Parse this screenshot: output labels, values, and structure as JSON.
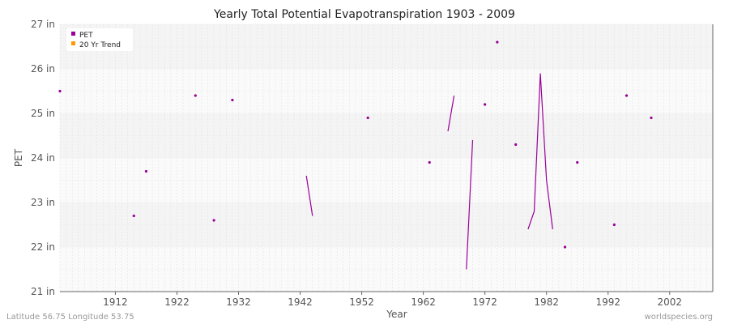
{
  "chart_data": {
    "type": "line",
    "title": "Yearly Total Potential Evapotranspiration 1903 - 2009",
    "xlabel": "Year",
    "ylabel": "PET",
    "xlim": [
      1903,
      2009
    ],
    "ylim": [
      21,
      27
    ],
    "x_ticks": [
      {
        "value": 1912,
        "label": "1912"
      },
      {
        "value": 1922,
        "label": "1922"
      },
      {
        "value": 1932,
        "label": "1932"
      },
      {
        "value": 1942,
        "label": "1942"
      },
      {
        "value": 1952,
        "label": "1952"
      },
      {
        "value": 1962,
        "label": "1962"
      },
      {
        "value": 1972,
        "label": "1972"
      },
      {
        "value": 1982,
        "label": "1982"
      },
      {
        "value": 1992,
        "label": "1992"
      },
      {
        "value": 2002,
        "label": "2002"
      }
    ],
    "y_ticks": [
      {
        "value": 21,
        "label": "21 in"
      },
      {
        "value": 22,
        "label": "22 in"
      },
      {
        "value": 23,
        "label": "23 in"
      },
      {
        "value": 24,
        "label": "24 in"
      },
      {
        "value": 25,
        "label": "25 in"
      },
      {
        "value": 26,
        "label": "26 in"
      },
      {
        "value": 27,
        "label": "27 in"
      }
    ],
    "grid": true,
    "legend_position": "top-left",
    "series": [
      {
        "name": "PET",
        "color": "#990099",
        "segments": [
          [
            [
              1903,
              25.5
            ]
          ],
          [
            [
              1915,
              22.7
            ]
          ],
          [
            [
              1917,
              23.7
            ]
          ],
          [
            [
              1925,
              25.4
            ]
          ],
          [
            [
              1928,
              22.6
            ]
          ],
          [
            [
              1931,
              25.3
            ]
          ],
          [
            [
              1943,
              23.6
            ],
            [
              1944,
              22.7
            ]
          ],
          [
            [
              1953,
              24.9
            ]
          ],
          [
            [
              1963,
              23.9
            ]
          ],
          [
            [
              1966,
              24.6
            ],
            [
              1967,
              25.4
            ]
          ],
          [
            [
              1969,
              21.5
            ],
            [
              1970,
              24.4
            ]
          ],
          [
            [
              1972,
              25.2
            ]
          ],
          [
            [
              1974,
              26.6
            ]
          ],
          [
            [
              1977,
              24.3
            ]
          ],
          [
            [
              1979,
              22.4
            ],
            [
              1980,
              22.8
            ],
            [
              1981,
              25.9
            ],
            [
              1982,
              23.5
            ],
            [
              1983,
              22.4
            ]
          ],
          [
            [
              1985,
              22.0
            ]
          ],
          [
            [
              1987,
              23.9
            ]
          ],
          [
            [
              1993,
              22.5
            ]
          ],
          [
            [
              1995,
              25.4
            ]
          ],
          [
            [
              1999,
              24.9
            ]
          ]
        ]
      },
      {
        "name": "20 Yr Trend",
        "color": "#ff9900",
        "segments": []
      }
    ]
  },
  "footer": {
    "left": "Latitude 56.75 Longitude 53.75",
    "right": "worldspecies.org"
  }
}
